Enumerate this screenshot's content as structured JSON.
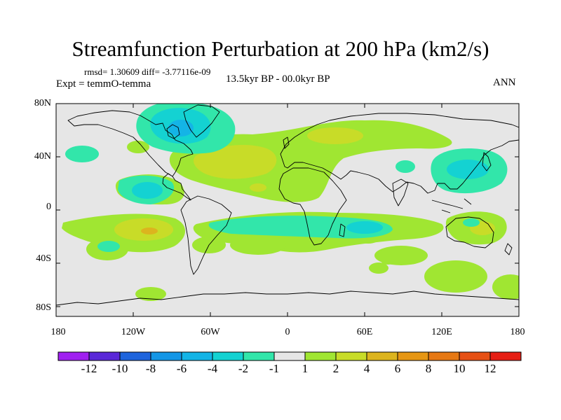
{
  "header": {
    "title": "Streamfunction Perturbation at 200 hPa (km2/s)",
    "stats": "rmsd= 1.30609 diff= -3.77116e-09",
    "experiment": "Expt = temmO-temma",
    "period": "13.5kyr BP - 00.0kyr BP",
    "season": "ANN"
  },
  "axes": {
    "y_labels": [
      "80N",
      "40N",
      "0",
      "40S",
      "80S"
    ],
    "x_labels": [
      "180",
      "120W",
      "60W",
      "0",
      "60E",
      "120E",
      "180"
    ]
  },
  "colorbar": {
    "labels": [
      "-12",
      "-10",
      "-8",
      "-6",
      "-4",
      "-2",
      "-1",
      "1",
      "2",
      "4",
      "6",
      "8",
      "10",
      "12"
    ],
    "colors": [
      "#a020f0",
      "#5a28d8",
      "#1e64dc",
      "#1496e6",
      "#14b4e6",
      "#14d2d2",
      "#32e6aa",
      "#e6e6e6",
      "#a0e632",
      "#c8dc28",
      "#dcb41e",
      "#e69614",
      "#e67814",
      "#e65014",
      "#e61e14"
    ]
  },
  "colors": {
    "background": "#e6e6e6",
    "coast": "#000000"
  }
}
